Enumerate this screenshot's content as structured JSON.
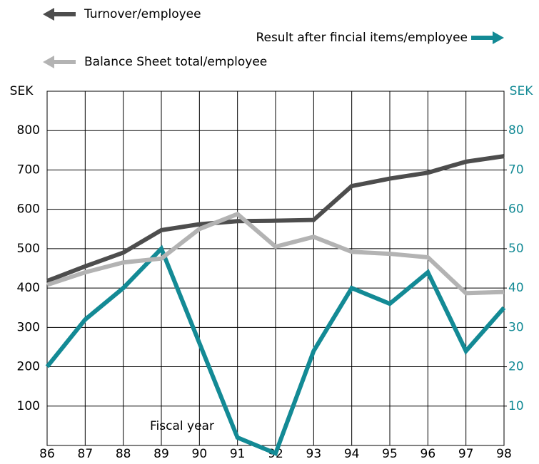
{
  "chart_data": {
    "type": "line",
    "x_label": "Fiscal year",
    "y_label": "SEK",
    "y2_label": "SEK",
    "categories": [
      "86",
      "87",
      "88",
      "89",
      "90",
      "91",
      "92",
      "93",
      "94",
      "95",
      "96",
      "97",
      "98"
    ],
    "series": [
      {
        "name": "Turnover/employee",
        "color": "#4d4d4d",
        "axis": "y",
        "values": [
          418,
          455,
          490,
          547,
          562,
          570,
          571,
          573,
          659,
          678,
          693,
          721,
          735
        ]
      },
      {
        "name": "Result after fincial items/employee",
        "color": "#138a95",
        "axis": "y2",
        "values": [
          20,
          32,
          40,
          50,
          26,
          2,
          -2,
          24,
          40,
          36,
          44,
          24,
          35
        ]
      },
      {
        "name": "Balance Sheet total/employee",
        "color": "#b3b3b3",
        "axis": "y",
        "values": [
          408,
          440,
          465,
          475,
          550,
          588,
          505,
          530,
          492,
          487,
          478,
          387,
          390
        ]
      }
    ],
    "ylim": [
      0,
      900
    ],
    "yticks": [
      100,
      200,
      300,
      400,
      500,
      600,
      700,
      800
    ],
    "y2lim": [
      0,
      90
    ],
    "y2ticks": [
      10,
      20,
      30,
      40,
      50,
      60,
      70,
      80
    ],
    "y2_color": "#138a95",
    "grid": true
  }
}
